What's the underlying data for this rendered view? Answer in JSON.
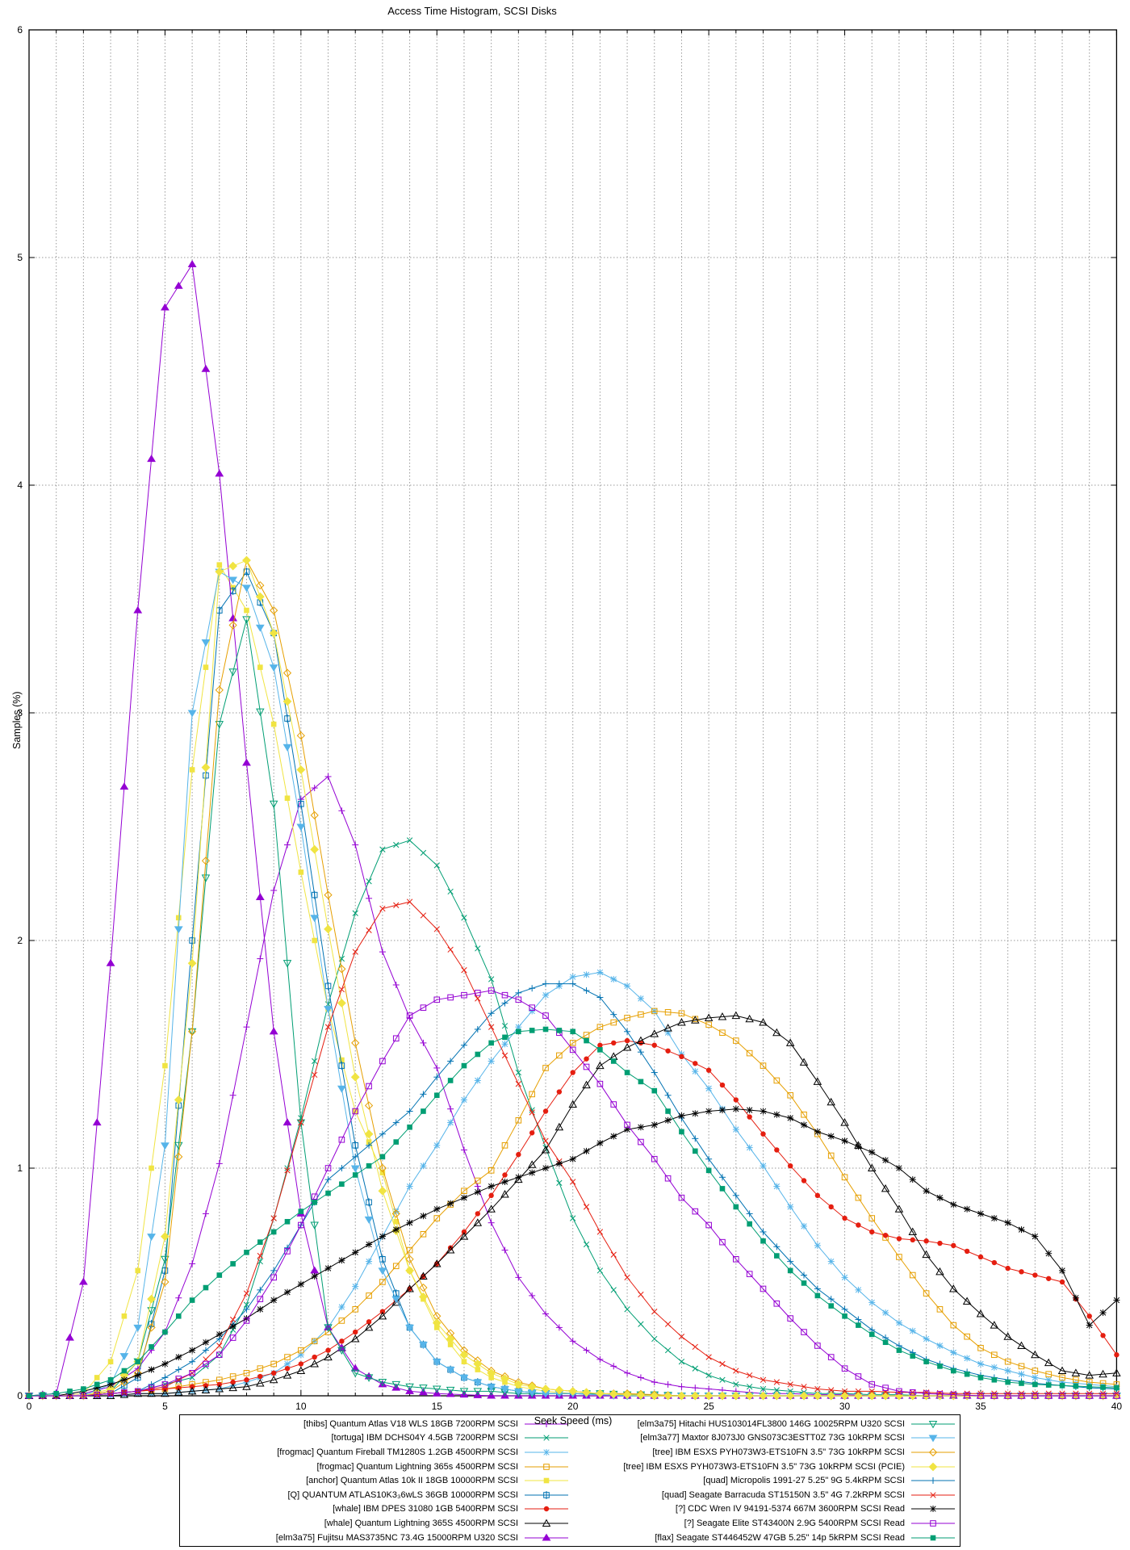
{
  "title": "Access Time Histogram, SCSI Disks",
  "axes": {
    "xlabel": "Seek Speed (ms)",
    "ylabel": "Samples (%)",
    "xlim": [
      0,
      40
    ],
    "ylim": [
      0,
      6
    ],
    "x_ticks": [
      0,
      5,
      10,
      15,
      20,
      25,
      30,
      35,
      40
    ],
    "x_minor_step": 1,
    "y_ticks": [
      0,
      1,
      2,
      3,
      4,
      5,
      6
    ],
    "grid": true,
    "grid_color": "#9a9a9a",
    "border_color": "#000000"
  },
  "legend": {
    "columns": 2,
    "position": "below-axis",
    "rows_per_column": 9
  },
  "chart_data": {
    "type": "line",
    "x_start": 0,
    "x_step": 1,
    "x_unit": "ms",
    "y_unit": "%",
    "series": [
      {
        "name": "[thibs] Quantum Atlas V18 WLS 18GB 7200RPM SCSI",
        "color": "#9400d3",
        "marker": "plus",
        "values": [
          0,
          0,
          0.01,
          0.04,
          0.12,
          0.28,
          0.58,
          1.02,
          1.62,
          2.22,
          2.62,
          2.72,
          2.42,
          1.95,
          1.66,
          1.44,
          1.08,
          0.76,
          0.52,
          0.36,
          0.24,
          0.16,
          0.1,
          0.06,
          0.04,
          0.03,
          0.02,
          0.01,
          0.01,
          0.005,
          0.005,
          0,
          0,
          0,
          0,
          0,
          0,
          0,
          0,
          0,
          0
        ]
      },
      {
        "name": "[tortuga] IBM DCHS04Y 4.5GB 7200RPM SCSI",
        "color": "#009e73",
        "marker": "cross",
        "values": [
          0,
          0,
          0,
          0.01,
          0.02,
          0.05,
          0.08,
          0.18,
          0.4,
          0.78,
          1.22,
          1.72,
          2.12,
          2.4,
          2.44,
          2.33,
          2.1,
          1.83,
          1.42,
          1.09,
          0.78,
          0.55,
          0.38,
          0.25,
          0.15,
          0.09,
          0.05,
          0.03,
          0.02,
          0.01,
          0.01,
          0.005,
          0.005,
          0,
          0,
          0,
          0,
          0,
          0,
          0,
          0
        ]
      },
      {
        "name": "[frogmac] Quantum Fireball TM1280S 1.2GB 4500RPM SCSI",
        "color": "#56b4e9",
        "marker": "asterisk",
        "values": [
          0,
          0,
          0,
          0,
          0.01,
          0.01,
          0.02,
          0.03,
          0.06,
          0.1,
          0.18,
          0.3,
          0.48,
          0.7,
          0.92,
          1.1,
          1.3,
          1.47,
          1.62,
          1.76,
          1.84,
          1.86,
          1.8,
          1.69,
          1.5,
          1.35,
          1.17,
          1.01,
          0.83,
          0.66,
          0.52,
          0.41,
          0.32,
          0.25,
          0.19,
          0.14,
          0.11,
          0.08,
          0.06,
          0.05,
          0.04
        ]
      },
      {
        "name": "[frogmac] Quantum Lightning 365s 4500RPM SCSI",
        "color": "#e69f00",
        "marker": "open-square",
        "values": [
          0,
          0,
          0,
          0.01,
          0.02,
          0.03,
          0.05,
          0.07,
          0.1,
          0.14,
          0.2,
          0.28,
          0.38,
          0.5,
          0.64,
          0.78,
          0.9,
          0.99,
          1.21,
          1.44,
          1.55,
          1.62,
          1.66,
          1.69,
          1.68,
          1.63,
          1.56,
          1.45,
          1.32,
          1.15,
          0.96,
          0.78,
          0.61,
          0.45,
          0.31,
          0.21,
          0.15,
          0.11,
          0.08,
          0.06,
          0.05
        ]
      },
      {
        "name": "[anchor] Quantum Atlas 10k II 18GB 10000RPM SCSI",
        "color": "#f0e442",
        "marker": "filled-square",
        "values": [
          0,
          0,
          0.01,
          0.15,
          0.55,
          1.45,
          2.75,
          3.65,
          3.45,
          2.95,
          2.3,
          1.7,
          1.25,
          0.98,
          0.55,
          0.3,
          0.15,
          0.08,
          0.04,
          0.02,
          0.01,
          0.01,
          0.005,
          0,
          0,
          0,
          0,
          0,
          0,
          0,
          0,
          0,
          0,
          0,
          0,
          0,
          0,
          0,
          0,
          0,
          0
        ]
      },
      {
        "name": "[Q] QUANTUM ATLAS10K3₃6wLS 36GB 10000RPM SCSI",
        "color": "#0072b2",
        "marker": "square-plus",
        "values": [
          0,
          0,
          0,
          0.01,
          0.08,
          0.55,
          2,
          3.45,
          3.62,
          3.35,
          2.6,
          1.8,
          1.1,
          0.6,
          0.3,
          0.15,
          0.08,
          0.04,
          0.02,
          0.01,
          0.01,
          0.005,
          0,
          0,
          0,
          0,
          0,
          0,
          0,
          0,
          0,
          0,
          0,
          0,
          0,
          0,
          0,
          0,
          0,
          0,
          0
        ]
      },
      {
        "name": "[whale] IBM DPES 31080 1GB 5400RPM SCSI",
        "color": "#e51e10",
        "marker": "filled-circle",
        "values": [
          0,
          0,
          0,
          0.01,
          0.02,
          0.03,
          0.04,
          0.05,
          0.07,
          0.1,
          0.14,
          0.2,
          0.28,
          0.37,
          0.47,
          0.58,
          0.72,
          0.88,
          1.06,
          1.25,
          1.42,
          1.54,
          1.56,
          1.54,
          1.49,
          1.43,
          1.3,
          1.15,
          1.01,
          0.88,
          0.78,
          0.72,
          0.69,
          0.68,
          0.66,
          0.61,
          0.56,
          0.53,
          0.5,
          0.35,
          0.18
        ]
      },
      {
        "name": "[whale] Quantum Lightning 365S 4500RPM SCSI",
        "color": "#000000",
        "marker": "open-triangle",
        "values": [
          0,
          0,
          0,
          0,
          0.01,
          0.01,
          0.02,
          0.03,
          0.04,
          0.07,
          0.11,
          0.17,
          0.25,
          0.35,
          0.47,
          0.58,
          0.7,
          0.82,
          0.95,
          1.08,
          1.28,
          1.45,
          1.53,
          1.59,
          1.64,
          1.66,
          1.67,
          1.64,
          1.55,
          1.38,
          1.2,
          1,
          0.82,
          0.62,
          0.47,
          0.36,
          0.26,
          0.18,
          0.11,
          0.09,
          0.1
        ]
      },
      {
        "name": "[elm3a75] Fujitsu MAS3735NC 73.4G 15000RPM U320 SCSI",
        "color": "#9400d3",
        "marker": "filled-triangle",
        "values": [
          0,
          0.01,
          0.5,
          1.9,
          3.45,
          4.78,
          4.97,
          4.05,
          2.78,
          1.6,
          0.8,
          0.3,
          0.12,
          0.05,
          0.02,
          0.01,
          0.005,
          0,
          0,
          0,
          0,
          0,
          0,
          0,
          0,
          0,
          0,
          0,
          0,
          0,
          0,
          0,
          0,
          0,
          0,
          0,
          0,
          0,
          0,
          0,
          0
        ]
      },
      {
        "name": "[elm3a75] Hitachi HUS103014FL3800 146G 10025RPM U320 SCSI",
        "color": "#009e73",
        "marker": "open-triangle-down",
        "values": [
          0,
          0,
          0,
          0.02,
          0.15,
          0.6,
          1.6,
          2.95,
          3.41,
          2.6,
          1.2,
          0.3,
          0.1,
          0.06,
          0.04,
          0.03,
          0.02,
          0.02,
          0.01,
          0.01,
          0.01,
          0.01,
          0.005,
          0.005,
          0,
          0,
          0,
          0,
          0,
          0,
          0,
          0,
          0,
          0,
          0,
          0,
          0,
          0,
          0,
          0,
          0
        ]
      },
      {
        "name": "[elm3a77] Maxtor 8J073J0 GNS073C3ESTT0Z 73G 10kRPM SCSI",
        "color": "#56b4e9",
        "marker": "filled-triangle-down",
        "values": [
          0,
          0,
          0,
          0.05,
          0.3,
          1.1,
          3,
          3.62,
          3.55,
          3.2,
          2.5,
          1.7,
          1,
          0.55,
          0.3,
          0.15,
          0.08,
          0.04,
          0.02,
          0.01,
          0.01,
          0.005,
          0,
          0,
          0,
          0,
          0,
          0,
          0,
          0,
          0,
          0,
          0,
          0,
          0,
          0,
          0,
          0,
          0,
          0,
          0
        ]
      },
      {
        "name": "[tree] IBM ESXS PYH073W3-ETS10FN 3.5\" 73G 10kRPM SCSI",
        "color": "#e69f00",
        "marker": "open-diamond",
        "values": [
          0,
          0,
          0,
          0.02,
          0.1,
          0.5,
          1.6,
          3.1,
          3.67,
          3.45,
          2.9,
          2.2,
          1.55,
          1,
          0.6,
          0.35,
          0.2,
          0.11,
          0.06,
          0.03,
          0.02,
          0.01,
          0.01,
          0.005,
          0,
          0,
          0,
          0,
          0,
          0,
          0,
          0,
          0,
          0,
          0,
          0,
          0,
          0,
          0,
          0,
          0
        ]
      },
      {
        "name": "[tree] IBM ESXS PYH073W3-ETS10FN 3.5\" 73G 10kRPM SCSI (PCIE)",
        "color": "#f0e442",
        "marker": "filled-diamond",
        "values": [
          0,
          0,
          0,
          0.03,
          0.15,
          0.7,
          1.9,
          3.62,
          3.67,
          3.35,
          2.75,
          2.05,
          1.4,
          0.9,
          0.55,
          0.32,
          0.18,
          0.1,
          0.05,
          0.03,
          0.02,
          0.01,
          0.005,
          0,
          0,
          0,
          0,
          0,
          0,
          0,
          0,
          0,
          0,
          0,
          0,
          0,
          0,
          0,
          0,
          0,
          0
        ]
      },
      {
        "name": "[quad] Micropolis 1991-27 5.25\" 9G 5.4kRPM SCSI",
        "color": "#0072b2",
        "marker": "plus",
        "values": [
          0,
          0,
          0,
          0.01,
          0.02,
          0.08,
          0.15,
          0.25,
          0.38,
          0.55,
          0.75,
          0.95,
          1.05,
          1.15,
          1.25,
          1.4,
          1.54,
          1.68,
          1.77,
          1.81,
          1.81,
          1.75,
          1.6,
          1.42,
          1.22,
          1.04,
          0.88,
          0.72,
          0.59,
          0.47,
          0.38,
          0.29,
          0.22,
          0.16,
          0.12,
          0.09,
          0.07,
          0.055,
          0.045,
          0.035,
          0.03
        ]
      },
      {
        "name": "[quad] Seagate Barracuda ST15150N 3.5\" 4G 7.2kRPM SCSI",
        "color": "#e51e10",
        "marker": "cross",
        "values": [
          0,
          0,
          0,
          0.01,
          0.02,
          0.04,
          0.1,
          0.22,
          0.45,
          0.78,
          1.2,
          1.62,
          1.95,
          2.14,
          2.17,
          2.05,
          1.87,
          1.62,
          1.37,
          1.12,
          0.94,
          0.72,
          0.52,
          0.37,
          0.26,
          0.17,
          0.11,
          0.07,
          0.05,
          0.03,
          0.02,
          0.02,
          0.015,
          0.015,
          0.01,
          0.01,
          0.01,
          0.01,
          0.01,
          0.01,
          0.01
        ]
      },
      {
        "name": "[?] CDC Wren IV 94191-5374 667M 3600RPM SCSI Read",
        "color": "#000000",
        "marker": "asterisk",
        "values": [
          0,
          0,
          0.02,
          0.05,
          0.09,
          0.14,
          0.2,
          0.27,
          0.34,
          0.42,
          0.49,
          0.56,
          0.63,
          0.7,
          0.76,
          0.82,
          0.87,
          0.92,
          0.96,
          1,
          1.04,
          1.11,
          1.17,
          1.19,
          1.23,
          1.25,
          1.26,
          1.25,
          1.22,
          1.16,
          1.12,
          1.07,
          1,
          0.9,
          0.84,
          0.8,
          0.76,
          0.7,
          0.55,
          0.31,
          0.42
        ]
      },
      {
        "name": "[?] Seagate Elite ST43400N 2.9G 5400RPM SCSI Read",
        "color": "#9400d3",
        "marker": "open-square",
        "values": [
          0,
          0,
          0,
          0.01,
          0.02,
          0.05,
          0.1,
          0.18,
          0.33,
          0.52,
          0.75,
          1,
          1.25,
          1.47,
          1.67,
          1.74,
          1.76,
          1.78,
          1.74,
          1.67,
          1.52,
          1.37,
          1.19,
          1.04,
          0.87,
          0.75,
          0.6,
          0.47,
          0.34,
          0.22,
          0.12,
          0.05,
          0.02,
          0.01,
          0.005,
          0,
          0,
          0,
          0,
          0,
          0
        ]
      },
      {
        "name": "[flax] Seagate ST446452W 47GB 5.25\" 14p 5kRPM SCSI Read",
        "color": "#009e73",
        "marker": "filled-square",
        "values": [
          0,
          0.01,
          0.03,
          0.07,
          0.15,
          0.28,
          0.42,
          0.53,
          0.63,
          0.72,
          0.81,
          0.89,
          0.97,
          1.05,
          1.18,
          1.32,
          1.45,
          1.55,
          1.6,
          1.61,
          1.6,
          1.52,
          1.42,
          1.34,
          1.16,
          0.99,
          0.83,
          0.68,
          0.55,
          0.44,
          0.35,
          0.27,
          0.2,
          0.15,
          0.11,
          0.08,
          0.06,
          0.05,
          0.045,
          0.04,
          0.035
        ]
      }
    ]
  }
}
